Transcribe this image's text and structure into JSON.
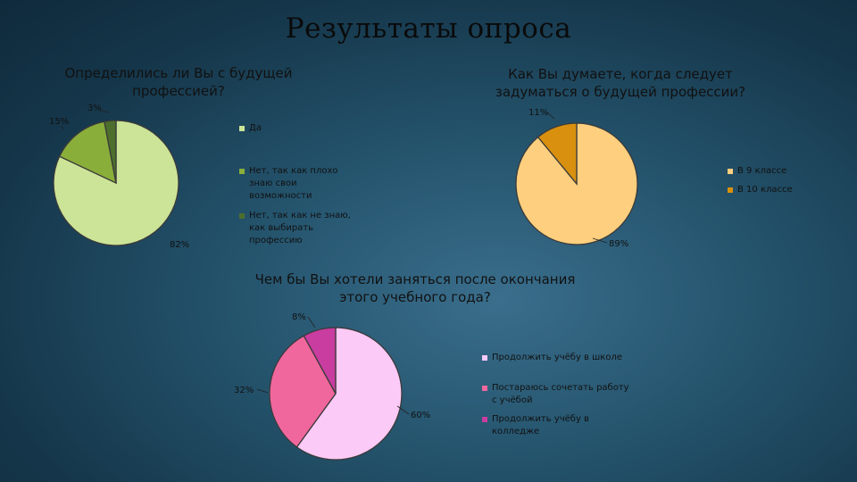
{
  "title": "Результаты опроса",
  "chart_data": [
    {
      "type": "pie",
      "title": "Определились ли Вы с будущей профессией?",
      "categories": [
        "Да",
        "Нет, так как плохо знаю свои возможности",
        "Нет, так как не знаю, как выбирать профессию"
      ],
      "values": [
        82,
        15,
        3
      ],
      "labels": [
        "82%",
        "15%",
        "3%"
      ],
      "colors": [
        "#cce497",
        "#8aae3a",
        "#4d6e2c"
      ],
      "legend": "right"
    },
    {
      "type": "pie",
      "title": "Как Вы думаете, когда следует задуматься о будущей профессии?",
      "categories": [
        "В 9 классе",
        "В 10 классе"
      ],
      "values": [
        89,
        11
      ],
      "labels": [
        "89%",
        "11%"
      ],
      "colors": [
        "#fdcf7e",
        "#d8900e"
      ],
      "legend": "right"
    },
    {
      "type": "pie",
      "title": "Чем бы Вы хотели заняться после окончания этого учебного года?",
      "categories": [
        "Продолжить учёбу в школе",
        "Постараюсь сочетать работу с учёбой",
        "Продолжить учёбу в колледже"
      ],
      "values": [
        60,
        32,
        8
      ],
      "labels": [
        "60%",
        "32%",
        "8%"
      ],
      "colors": [
        "#fccaf6",
        "#f0679d",
        "#c93ca0"
      ],
      "legend": "right"
    }
  ]
}
